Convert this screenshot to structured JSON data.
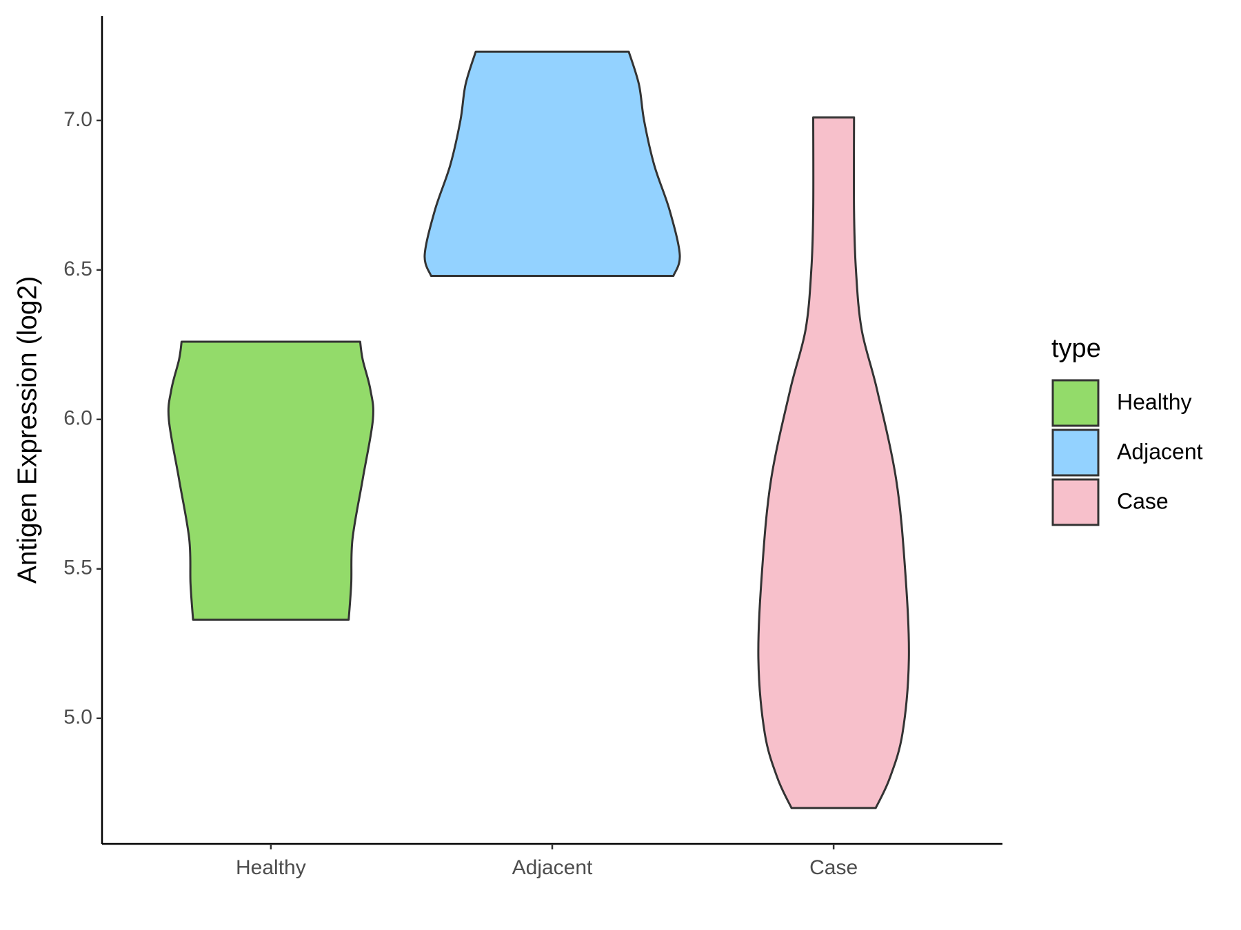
{
  "chart_data": {
    "type": "violin",
    "y_label": "Antigen Expression (log2)",
    "categories": [
      "Healthy",
      "Adjacent",
      "Case"
    ],
    "legend_title": "type",
    "series": [
      {
        "name": "Healthy",
        "color": "#93DB6A",
        "y": [
          5.33,
          5.45,
          5.6,
          5.8,
          6.0,
          6.1,
          6.2,
          6.26
        ],
        "density": [
          0.61,
          0.63,
          0.64,
          0.72,
          0.8,
          0.78,
          0.72,
          0.7
        ]
      },
      {
        "name": "Adjacent",
        "color": "#93D2FF",
        "y": [
          6.48,
          6.55,
          6.7,
          6.85,
          7.0,
          7.12,
          7.23
        ],
        "density": [
          0.95,
          1.0,
          0.92,
          0.8,
          0.72,
          0.68,
          0.6
        ]
      },
      {
        "name": "Case",
        "color": "#F7C0CB",
        "y": [
          4.7,
          4.8,
          4.95,
          5.2,
          5.5,
          5.8,
          6.1,
          6.3,
          6.5,
          6.7,
          7.01
        ],
        "density": [
          0.33,
          0.44,
          0.54,
          0.59,
          0.56,
          0.49,
          0.34,
          0.22,
          0.175,
          0.16,
          0.16
        ]
      }
    ],
    "ylim": [
      4.58,
      7.35
    ],
    "yticks": [
      {
        "value": 5,
        "label": "5.0"
      },
      {
        "value": 5.5,
        "label": "5.5"
      },
      {
        "value": 6,
        "label": "6.0"
      },
      {
        "value": 6.5,
        "label": "6.5"
      },
      {
        "value": 7,
        "label": "7.0"
      }
    ],
    "grid": false
  }
}
